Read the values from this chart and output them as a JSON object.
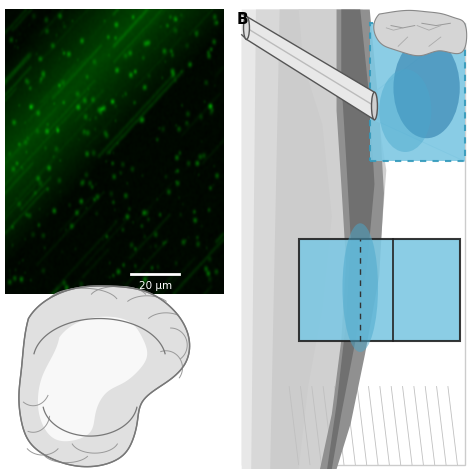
{
  "bg_color": "#ffffff",
  "panel_label_B": "B",
  "scalebar_text": "20 μm",
  "light_blue": "#7ec8e3",
  "mid_blue": "#4aa8cc",
  "dark_blue": "#2878a8",
  "gray_light": "#d8d8d8",
  "gray_mid": "#a8a8a8",
  "gray_dark": "#787878",
  "gray_darker": "#585858",
  "outline_color": "#444444"
}
